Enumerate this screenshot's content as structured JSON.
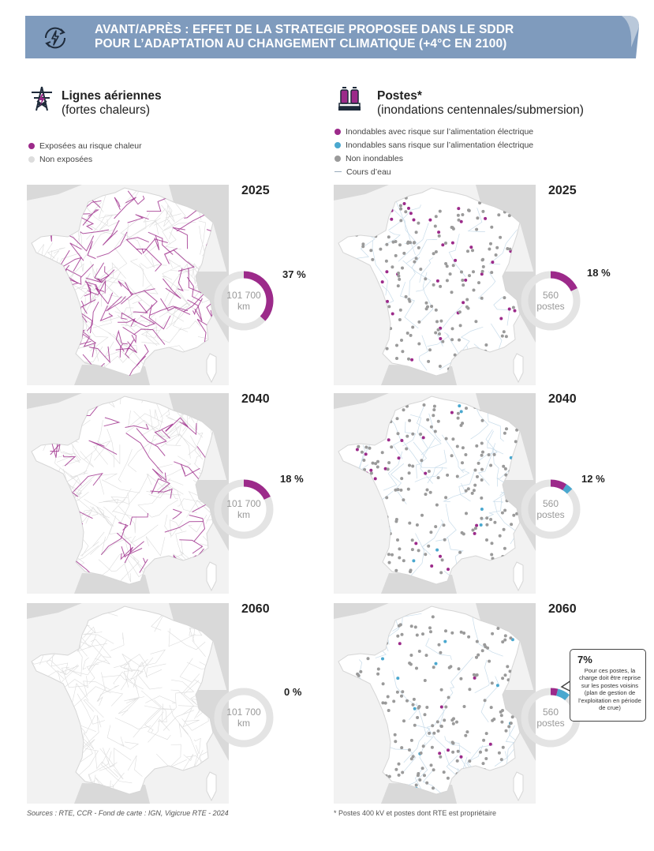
{
  "banner": {
    "title_line1": "AVANT/APRÈS : EFFET DE LA STRATEGIE PROPOSEE DANS LE SDDR",
    "title_line2": "POUR L’ADAPTATION AU CHANGEMENT CLIMATIQUE (+4°C EN 2100)",
    "color": "#7f9bbd",
    "icon": "lightning-cycle-icon"
  },
  "left": {
    "icon": "pylon-icon",
    "title": "Lignes aériennes",
    "subtitle": "(fortes chaleurs)",
    "legend": [
      {
        "label": "Exposées au risque chaleur",
        "color": "#9c2a8a"
      },
      {
        "label": "Non exposées",
        "color": "#dddddd"
      }
    ],
    "total_label_line1": "101 700",
    "total_label_line2": "km",
    "panels": [
      {
        "year": "2025",
        "pct_label": "37 %",
        "exposed_fraction": 0.37
      },
      {
        "year": "2040",
        "pct_label": "18 %",
        "exposed_fraction": 0.18
      },
      {
        "year": "2060",
        "pct_label": "0 %",
        "exposed_fraction": 0.0
      }
    ]
  },
  "right": {
    "icon": "substation-icon",
    "title": "Postes*",
    "subtitle": "(inondations centennales/submersion)",
    "legend": [
      {
        "label": "Inondables avec risque sur l’alimentation électrique",
        "color": "#9c2a8a",
        "kind": "dot"
      },
      {
        "label": "Inondables sans risque sur l’alimentation électrique",
        "color": "#4aa8cf",
        "kind": "dot"
      },
      {
        "label": "Non inondables",
        "color": "#9a9a9a",
        "kind": "dot"
      },
      {
        "label": "Cours d’eau",
        "color": "#a9bfd0",
        "kind": "line"
      }
    ],
    "total_label_line1": "560",
    "total_label_line2": "postes",
    "panels": [
      {
        "year": "2025",
        "pct_label": "18 %",
        "risk_fraction": 0.18,
        "norisk_fraction": 0.0
      },
      {
        "year": "2040",
        "pct_label": "12 %",
        "risk_fraction": 0.09,
        "norisk_fraction": 0.04
      },
      {
        "year": "2060",
        "pct_label": "",
        "risk_fraction": 0.04,
        "norisk_fraction": 0.07
      }
    ],
    "callout": {
      "pct": "7%",
      "text": "Pour ces postes, la charge doit être reprise sur les postes voisins (plan de gestion de l’exploitation en période de crue)"
    }
  },
  "footer": {
    "sources": "Sources : RTE, CCR - Fond de carte : IGN, Vigicrue RTE - 2024",
    "note": "* Postes 400 kV et postes dont RTE est propriétaire"
  },
  "colors": {
    "risk": "#9c2a8a",
    "norisk": "#4aa8cf",
    "neutral": "#9a9a9a",
    "track": "#e4e4e4",
    "land": "#ffffff",
    "sea": "#f2f2f2",
    "foreign": "#d9d9d9"
  }
}
